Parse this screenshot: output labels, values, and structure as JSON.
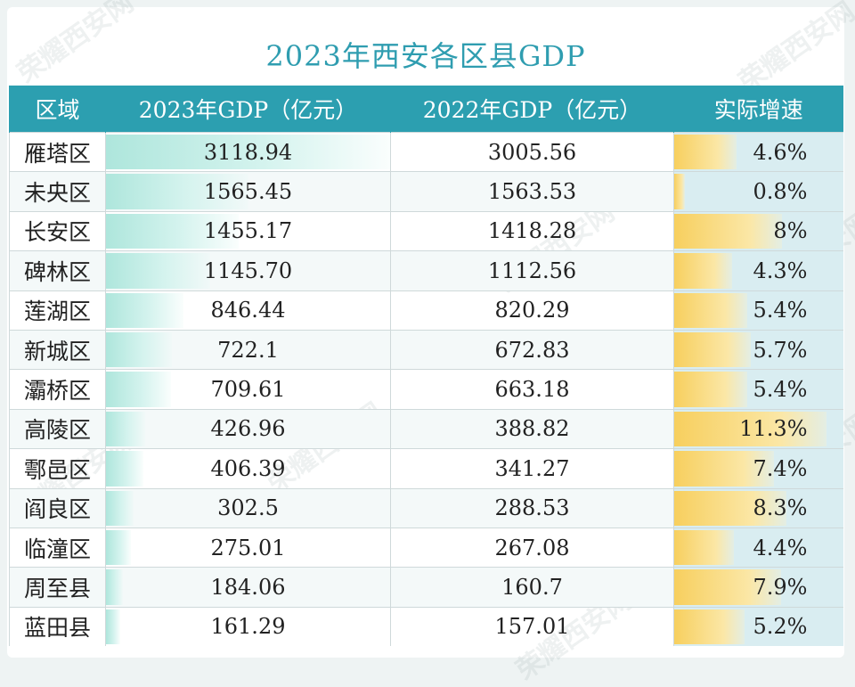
{
  "title": "2023年西安各区县GDP",
  "watermark": "荣耀西安网",
  "headers": {
    "region": "区域",
    "gdp2023": "2023年GDP（亿元）",
    "gdp2022": "2022年GDP（亿元）",
    "growth": "实际增速"
  },
  "colors": {
    "header_bg": "#2c9fb0",
    "title": "#2f9db0",
    "gdp_bar": "#aee6dc",
    "growth_bar": "#f7cf5e"
  },
  "rows": [
    {
      "region": "雁塔区",
      "gdp2023": "3118.94",
      "gdp2022": "3005.56",
      "growth": "4.6%",
      "growth_value": 4.6
    },
    {
      "region": "未央区",
      "gdp2023": "1565.45",
      "gdp2022": "1563.53",
      "growth": "0.8%",
      "growth_value": 0.8
    },
    {
      "region": "长安区",
      "gdp2023": "1455.17",
      "gdp2022": "1418.28",
      "growth": "8%",
      "growth_value": 8
    },
    {
      "region": "碑林区",
      "gdp2023": "1145.70",
      "gdp2022": "1112.56",
      "growth": "4.3%",
      "growth_value": 4.3
    },
    {
      "region": "莲湖区",
      "gdp2023": "846.44",
      "gdp2022": "820.29",
      "growth": "5.4%",
      "growth_value": 5.4
    },
    {
      "region": "新城区",
      "gdp2023": "722.1",
      "gdp2022": "672.83",
      "growth": "5.7%",
      "growth_value": 5.7
    },
    {
      "region": "灞桥区",
      "gdp2023": "709.61",
      "gdp2022": "663.18",
      "growth": "5.4%",
      "growth_value": 5.4
    },
    {
      "region": "高陵区",
      "gdp2023": "426.96",
      "gdp2022": "388.82",
      "growth": "11.3%",
      "growth_value": 11.3
    },
    {
      "region": "鄠邑区",
      "gdp2023": "406.39",
      "gdp2022": "341.27",
      "growth": "7.4%",
      "growth_value": 7.4
    },
    {
      "region": "阎良区",
      "gdp2023": "302.5",
      "gdp2022": "288.53",
      "growth": "8.3%",
      "growth_value": 8.3
    },
    {
      "region": "临潼区",
      "gdp2023": "275.01",
      "gdp2022": "267.08",
      "growth": "4.4%",
      "growth_value": 4.4
    },
    {
      "region": "周至县",
      "gdp2023": "184.06",
      "gdp2022": "160.7",
      "growth": "7.9%",
      "growth_value": 7.9
    },
    {
      "region": "蓝田县",
      "gdp2023": "161.29",
      "gdp2022": "157.01",
      "growth": "5.2%",
      "growth_value": 5.2
    }
  ]
}
